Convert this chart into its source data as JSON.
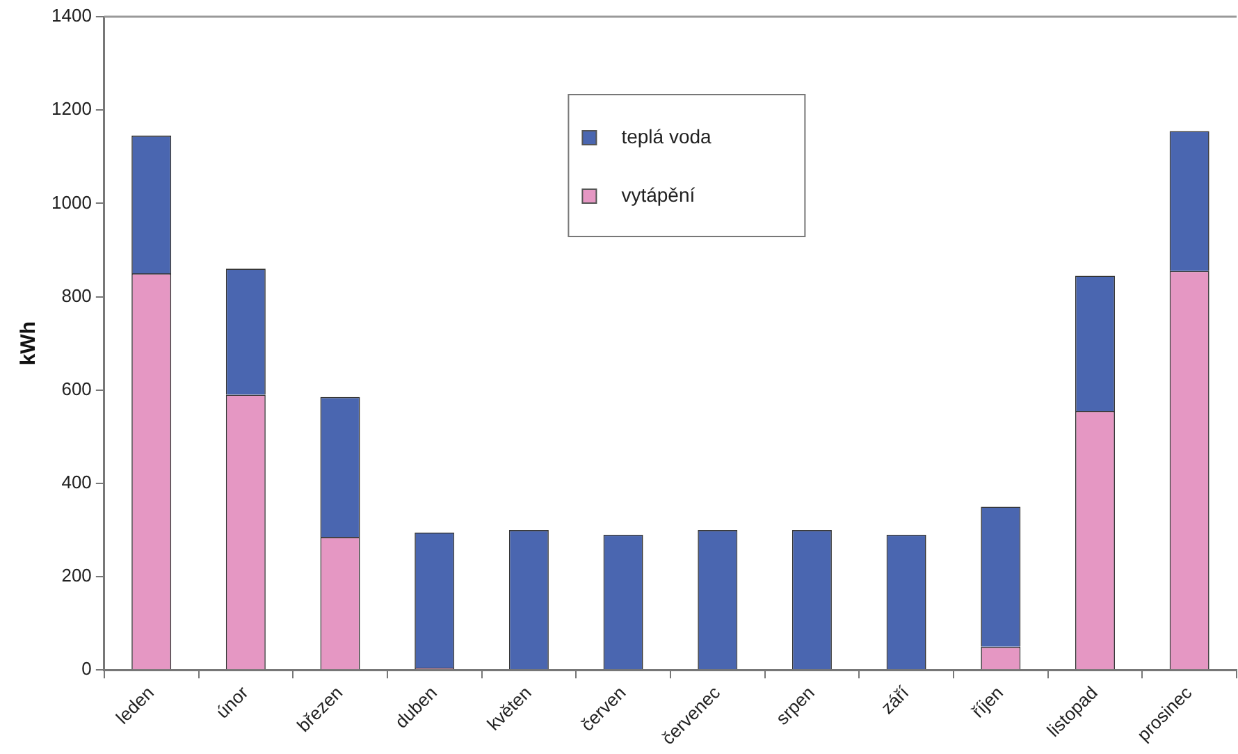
{
  "chart_data": {
    "type": "bar",
    "ylabel": "kWh",
    "stacked": true,
    "legend": "top",
    "grid": false,
    "categories": [
      "leden",
      "únor",
      "březen",
      "duben",
      "květen",
      "červen",
      "červenec",
      "srpen",
      "září",
      "říjen",
      "listopad",
      "prosinec"
    ],
    "series": [
      {
        "name": "vytápění",
        "color": "#e597c3",
        "values": [
          850,
          590,
          285,
          5,
          0,
          0,
          0,
          0,
          0,
          50,
          555,
          855
        ]
      },
      {
        "name": "teplá voda",
        "color": "#4a66b0",
        "values": [
          295,
          270,
          300,
          290,
          300,
          290,
          300,
          300,
          290,
          300,
          290,
          300
        ]
      }
    ],
    "ylim": [
      0,
      1400
    ],
    "yticks": [
      0,
      200,
      400,
      600,
      800,
      1000,
      1200,
      1400
    ]
  }
}
